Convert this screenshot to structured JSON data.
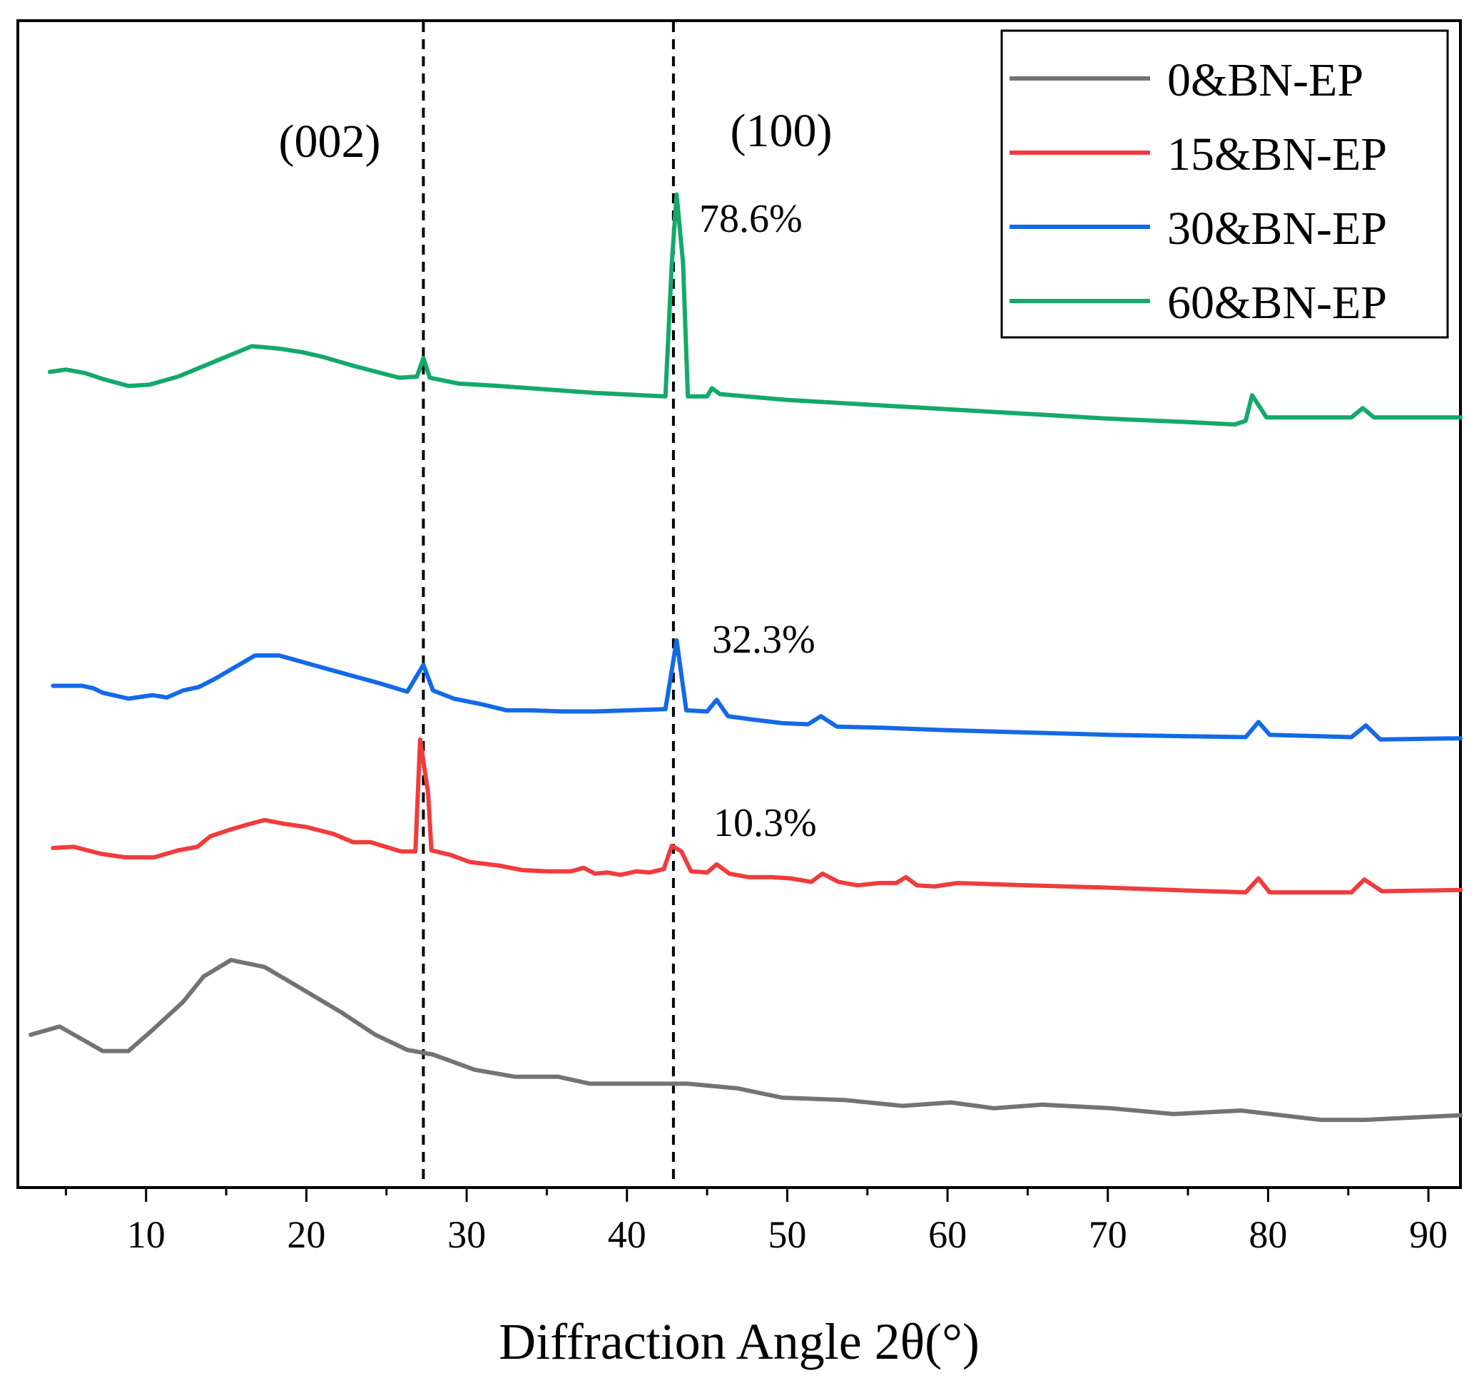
{
  "chart_data": {
    "type": "line",
    "xlabel": "Diffraction Angle 2θ(°)",
    "ylabel": "",
    "xlim": [
      2.0,
      92.0
    ],
    "x_ticks": [
      10,
      20,
      30,
      40,
      50,
      60,
      70,
      80,
      90
    ],
    "y_ticks_shown": false,
    "grid": false,
    "legend": {
      "position": "top-right",
      "entries": [
        "0&BN-EP",
        "15&BN-EP",
        "30&BN-EP",
        "60&BN-EP"
      ]
    },
    "reference_lines": [
      {
        "x": 27.3,
        "label": "(002)",
        "style": "dashed"
      },
      {
        "x": 42.9,
        "label": "(100)",
        "style": "dashed"
      }
    ],
    "annotations": [
      "78.6%",
      "32.3%",
      "10.3%"
    ],
    "y_scale": "arbitrary intensity (0 = bottom axis, 1 = top of frame)",
    "series": [
      {
        "name": "0&BN-EP",
        "color": "#737373",
        "points": [
          [
            2.8,
            0.131
          ],
          [
            4.6,
            0.138
          ],
          [
            7.3,
            0.117
          ],
          [
            8.9,
            0.117
          ],
          [
            10.4,
            0.135
          ],
          [
            12.3,
            0.159
          ],
          [
            13.6,
            0.181
          ],
          [
            15.3,
            0.195
          ],
          [
            17.4,
            0.189
          ],
          [
            20.0,
            0.168
          ],
          [
            22.2,
            0.15
          ],
          [
            24.3,
            0.131
          ],
          [
            26.3,
            0.118
          ],
          [
            27.9,
            0.114
          ],
          [
            30.5,
            0.101
          ],
          [
            33.0,
            0.095
          ],
          [
            35.7,
            0.095
          ],
          [
            37.7,
            0.089
          ],
          [
            40.4,
            0.089
          ],
          [
            43.8,
            0.089
          ],
          [
            46.9,
            0.085
          ],
          [
            49.7,
            0.077
          ],
          [
            53.6,
            0.075
          ],
          [
            57.2,
            0.07
          ],
          [
            60.2,
            0.073
          ],
          [
            62.9,
            0.068
          ],
          [
            65.9,
            0.071
          ],
          [
            70.2,
            0.068
          ],
          [
            74.1,
            0.063
          ],
          [
            78.3,
            0.066
          ],
          [
            83.3,
            0.058
          ],
          [
            86.0,
            0.058
          ],
          [
            92.0,
            0.062
          ]
        ]
      },
      {
        "name": "15&BN-EP",
        "color": "#f03c3c",
        "points": [
          [
            4.2,
            0.291
          ],
          [
            5.5,
            0.292
          ],
          [
            7.2,
            0.286
          ],
          [
            8.7,
            0.283
          ],
          [
            10.5,
            0.283
          ],
          [
            12.0,
            0.289
          ],
          [
            13.2,
            0.292
          ],
          [
            14.0,
            0.301
          ],
          [
            15.3,
            0.307
          ],
          [
            16.3,
            0.311
          ],
          [
            17.4,
            0.315
          ],
          [
            18.5,
            0.312
          ],
          [
            20.0,
            0.309
          ],
          [
            21.7,
            0.303
          ],
          [
            22.9,
            0.296
          ],
          [
            24.0,
            0.296
          ],
          [
            25.9,
            0.288
          ],
          [
            26.8,
            0.288
          ],
          [
            27.1,
            0.384
          ],
          [
            27.6,
            0.338
          ],
          [
            27.8,
            0.289
          ],
          [
            29.0,
            0.285
          ],
          [
            30.2,
            0.279
          ],
          [
            32.0,
            0.276
          ],
          [
            33.5,
            0.272
          ],
          [
            35.0,
            0.271
          ],
          [
            36.5,
            0.271
          ],
          [
            37.3,
            0.274
          ],
          [
            38.0,
            0.269
          ],
          [
            38.8,
            0.27
          ],
          [
            39.6,
            0.268
          ],
          [
            40.6,
            0.271
          ],
          [
            41.4,
            0.27
          ],
          [
            42.3,
            0.273
          ],
          [
            42.8,
            0.293
          ],
          [
            43.4,
            0.288
          ],
          [
            44.0,
            0.271
          ],
          [
            45.0,
            0.27
          ],
          [
            45.6,
            0.277
          ],
          [
            46.4,
            0.269
          ],
          [
            47.6,
            0.266
          ],
          [
            49.0,
            0.266
          ],
          [
            50.2,
            0.265
          ],
          [
            51.5,
            0.262
          ],
          [
            52.2,
            0.269
          ],
          [
            53.2,
            0.262
          ],
          [
            54.4,
            0.259
          ],
          [
            55.7,
            0.261
          ],
          [
            56.8,
            0.261
          ],
          [
            57.4,
            0.266
          ],
          [
            58.1,
            0.259
          ],
          [
            59.2,
            0.258
          ],
          [
            60.6,
            0.261
          ],
          [
            65.0,
            0.259
          ],
          [
            70.0,
            0.257
          ],
          [
            74.0,
            0.255
          ],
          [
            78.6,
            0.253
          ],
          [
            79.4,
            0.265
          ],
          [
            80.1,
            0.253
          ],
          [
            85.2,
            0.253
          ],
          [
            86.0,
            0.264
          ],
          [
            87.1,
            0.254
          ],
          [
            92.0,
            0.255
          ]
        ]
      },
      {
        "name": "30&BN-EP",
        "color": "#1469e6",
        "points": [
          [
            4.2,
            0.43
          ],
          [
            6.0,
            0.43
          ],
          [
            6.7,
            0.428
          ],
          [
            7.3,
            0.424
          ],
          [
            8.9,
            0.419
          ],
          [
            10.4,
            0.422
          ],
          [
            11.3,
            0.42
          ],
          [
            12.3,
            0.426
          ],
          [
            13.3,
            0.429
          ],
          [
            14.3,
            0.436
          ],
          [
            16.8,
            0.456
          ],
          [
            18.3,
            0.456
          ],
          [
            21.7,
            0.443
          ],
          [
            24.6,
            0.432
          ],
          [
            26.3,
            0.425
          ],
          [
            27.3,
            0.448
          ],
          [
            27.9,
            0.426
          ],
          [
            29.2,
            0.419
          ],
          [
            31.0,
            0.414
          ],
          [
            32.5,
            0.409
          ],
          [
            34.0,
            0.409
          ],
          [
            36.0,
            0.408
          ],
          [
            38.0,
            0.408
          ],
          [
            42.4,
            0.41
          ],
          [
            43.1,
            0.469
          ],
          [
            43.7,
            0.409
          ],
          [
            45.0,
            0.408
          ],
          [
            45.6,
            0.418
          ],
          [
            46.3,
            0.404
          ],
          [
            47.9,
            0.401
          ],
          [
            49.7,
            0.398
          ],
          [
            51.3,
            0.397
          ],
          [
            52.1,
            0.404
          ],
          [
            53.1,
            0.395
          ],
          [
            56.0,
            0.394
          ],
          [
            60.0,
            0.392
          ],
          [
            65.0,
            0.39
          ],
          [
            70.0,
            0.388
          ],
          [
            74.0,
            0.387
          ],
          [
            78.6,
            0.386
          ],
          [
            79.4,
            0.399
          ],
          [
            80.1,
            0.388
          ],
          [
            85.2,
            0.386
          ],
          [
            86.1,
            0.396
          ],
          [
            87.0,
            0.384
          ],
          [
            92.0,
            0.385
          ]
        ]
      },
      {
        "name": "60&BN-EP",
        "color": "#14a96b",
        "points": [
          [
            4.0,
            0.699
          ],
          [
            5.0,
            0.701
          ],
          [
            6.2,
            0.698
          ],
          [
            7.3,
            0.693
          ],
          [
            8.9,
            0.687
          ],
          [
            10.2,
            0.688
          ],
          [
            12.0,
            0.695
          ],
          [
            14.3,
            0.708
          ],
          [
            16.6,
            0.721
          ],
          [
            18.3,
            0.719
          ],
          [
            19.7,
            0.716
          ],
          [
            21.0,
            0.712
          ],
          [
            23.0,
            0.704
          ],
          [
            25.8,
            0.694
          ],
          [
            26.9,
            0.695
          ],
          [
            27.3,
            0.711
          ],
          [
            27.7,
            0.694
          ],
          [
            29.5,
            0.689
          ],
          [
            32.0,
            0.687
          ],
          [
            35.0,
            0.684
          ],
          [
            38.0,
            0.681
          ],
          [
            42.4,
            0.678
          ],
          [
            42.8,
            0.792
          ],
          [
            43.1,
            0.851
          ],
          [
            43.5,
            0.792
          ],
          [
            43.8,
            0.678
          ],
          [
            45.0,
            0.678
          ],
          [
            45.3,
            0.685
          ],
          [
            45.8,
            0.68
          ],
          [
            50.0,
            0.675
          ],
          [
            55.0,
            0.671
          ],
          [
            60.0,
            0.667
          ],
          [
            65.0,
            0.663
          ],
          [
            70.0,
            0.659
          ],
          [
            75.0,
            0.656
          ],
          [
            77.9,
            0.654
          ],
          [
            78.6,
            0.657
          ],
          [
            79.0,
            0.679
          ],
          [
            79.9,
            0.66
          ],
          [
            85.2,
            0.66
          ],
          [
            85.9,
            0.668
          ],
          [
            86.6,
            0.66
          ],
          [
            92.0,
            0.66
          ]
        ]
      }
    ]
  }
}
